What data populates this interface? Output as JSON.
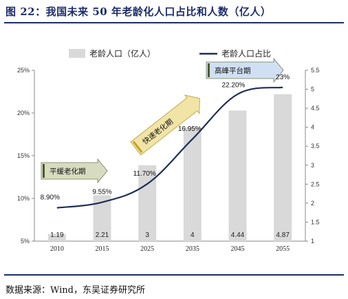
{
  "header": {
    "title": "图 22：我国未来 50 年老龄化人口占比和人数（亿人）"
  },
  "footer": {
    "source": "数据来源：Wind，东吴证券研究所"
  },
  "colors": {
    "bar": "#d9d9d9",
    "line": "#1f2d5a",
    "accent": "#1d2d6b",
    "arrow_olive": "#d7dcc0",
    "arrow_blue": "#d0dff2",
    "arrow_yellow": "#f1e4a6"
  },
  "chart_data": {
    "type": "bar",
    "categories": [
      "2010",
      "2015",
      "2025",
      "2035",
      "2045",
      "2055"
    ],
    "series": [
      {
        "name": "老龄人口（亿人）",
        "type": "bar",
        "axis": "right",
        "values": [
          1.19,
          2.21,
          3,
          4,
          4.44,
          4.87
        ],
        "labels": [
          "1.19",
          "2.21",
          "3",
          "4",
          "4.44",
          "4.87"
        ]
      },
      {
        "name": "老龄人口占比",
        "type": "line",
        "axis": "left",
        "values": [
          8.9,
          9.55,
          11.7,
          16.95,
          22.2,
          23
        ],
        "labels": [
          "8.90%",
          "9.55%",
          "11.70%",
          "16.95%",
          "22.20%",
          "23%"
        ]
      }
    ],
    "y_left": {
      "ylim": [
        5,
        25
      ],
      "ticks": [
        "5%",
        "10%",
        "15%",
        "20%",
        "25%"
      ]
    },
    "y_right": {
      "ylim": [
        1,
        5.5
      ],
      "ticks": [
        "1",
        "1.5",
        "2",
        "2.5",
        "3",
        "3.5",
        "4",
        "4.5",
        "5",
        "5.5"
      ]
    },
    "legend_position": "top",
    "annotations": [
      "平缓老化期",
      "快速老化期",
      "高峰平台期"
    ],
    "grid": false
  }
}
